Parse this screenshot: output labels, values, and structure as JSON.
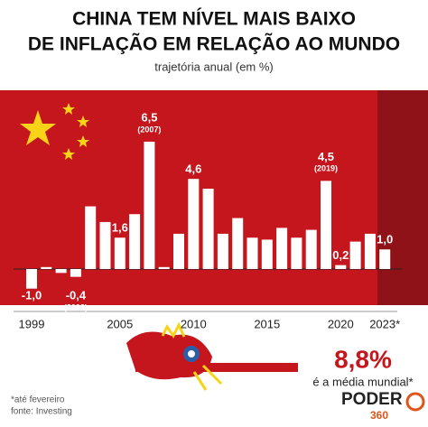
{
  "chart_data": {
    "type": "bar",
    "title": "CHINA TEM NÍVEL MAIS BAIXO DE INFLAÇÃO EM RELAÇÃO AO MUNDO",
    "subtitle": "trajetória anual (em %)",
    "categories": [
      "1999",
      null,
      null,
      null,
      null,
      null,
      "2005",
      null,
      null,
      null,
      null,
      "2010",
      null,
      null,
      null,
      null,
      "2015",
      null,
      null,
      null,
      null,
      "2020",
      null,
      null,
      "2023*"
    ],
    "values": [
      -1.0,
      0.1,
      -0.2,
      -0.4,
      3.2,
      2.4,
      1.6,
      2.8,
      6.5,
      0.1,
      1.8,
      4.6,
      4.1,
      1.8,
      2.6,
      1.6,
      1.5,
      2.1,
      1.6,
      2.0,
      4.5,
      0.2,
      1.4,
      1.8,
      1.0
    ],
    "value_labels": [
      "-1,0",
      null,
      null,
      "-0,4",
      null,
      null,
      "1,6",
      null,
      "6,5",
      null,
      null,
      "4,6",
      null,
      null,
      null,
      null,
      null,
      null,
      null,
      null,
      "4,5",
      "0,2",
      null,
      null,
      "1,0"
    ],
    "label_years": [
      null,
      null,
      null,
      "(2002)",
      null,
      null,
      null,
      null,
      "(2007)",
      null,
      null,
      null,
      null,
      null,
      null,
      null,
      null,
      null,
      null,
      null,
      "(2019)",
      null,
      null,
      null,
      null
    ],
    "color": "#ffffff",
    "world_value": "8,8%",
    "world_text": "é a média mundial*",
    "footnote": "*até fevereiro",
    "source": "fonte: Investing",
    "logo": "PODER",
    "logo_sub": "360"
  }
}
